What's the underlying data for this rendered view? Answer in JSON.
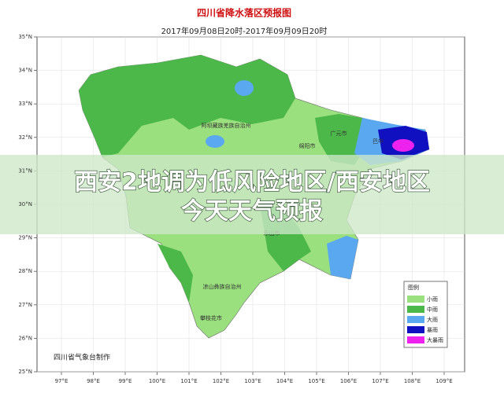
{
  "header": {
    "title": "四川省降水落区预报图",
    "subtitle": "2017年09月08日20时-2017年09月09日20时"
  },
  "axes": {
    "longitudes": [
      "97°E",
      "98°E",
      "99°E",
      "100°E",
      "101°E",
      "102°E",
      "103°E",
      "104°E",
      "105°E",
      "106°E",
      "107°E",
      "108°E",
      "109°E"
    ],
    "latitudes": [
      "35°N",
      "34°N",
      "33°N",
      "32°N",
      "31°N",
      "30°N",
      "29°N",
      "28°N",
      "27°N",
      "26°N",
      "25°N"
    ]
  },
  "places": [
    "阿坝藏族羌族自治州",
    "绵阳市",
    "广元市",
    "巴中",
    "乐山市",
    "凉山彝族自治州",
    "攀枝花市"
  ],
  "legend": {
    "title": "图例",
    "items": [
      "小雨",
      "中雨",
      "大雨",
      "暴雨",
      "大暴雨"
    ]
  },
  "credit": "四川省气象台制作",
  "banner": {
    "lines": [
      "西安2地调为低风险地区/西安地区",
      "今天天气预报"
    ]
  }
}
